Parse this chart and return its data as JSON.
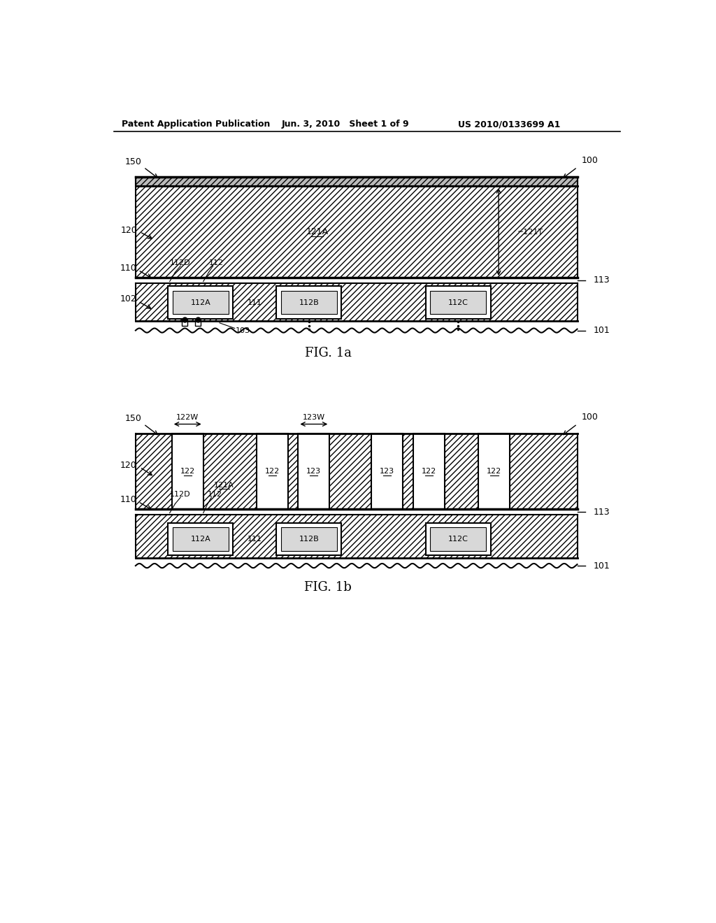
{
  "bg_color": "#ffffff",
  "header_text": "Patent Application Publication",
  "header_date": "Jun. 3, 2010   Sheet 1 of 9",
  "header_patent": "US 2010/0133699 A1",
  "fig1a_label": "FIG. 1a",
  "fig1b_label": "FIG. 1b"
}
